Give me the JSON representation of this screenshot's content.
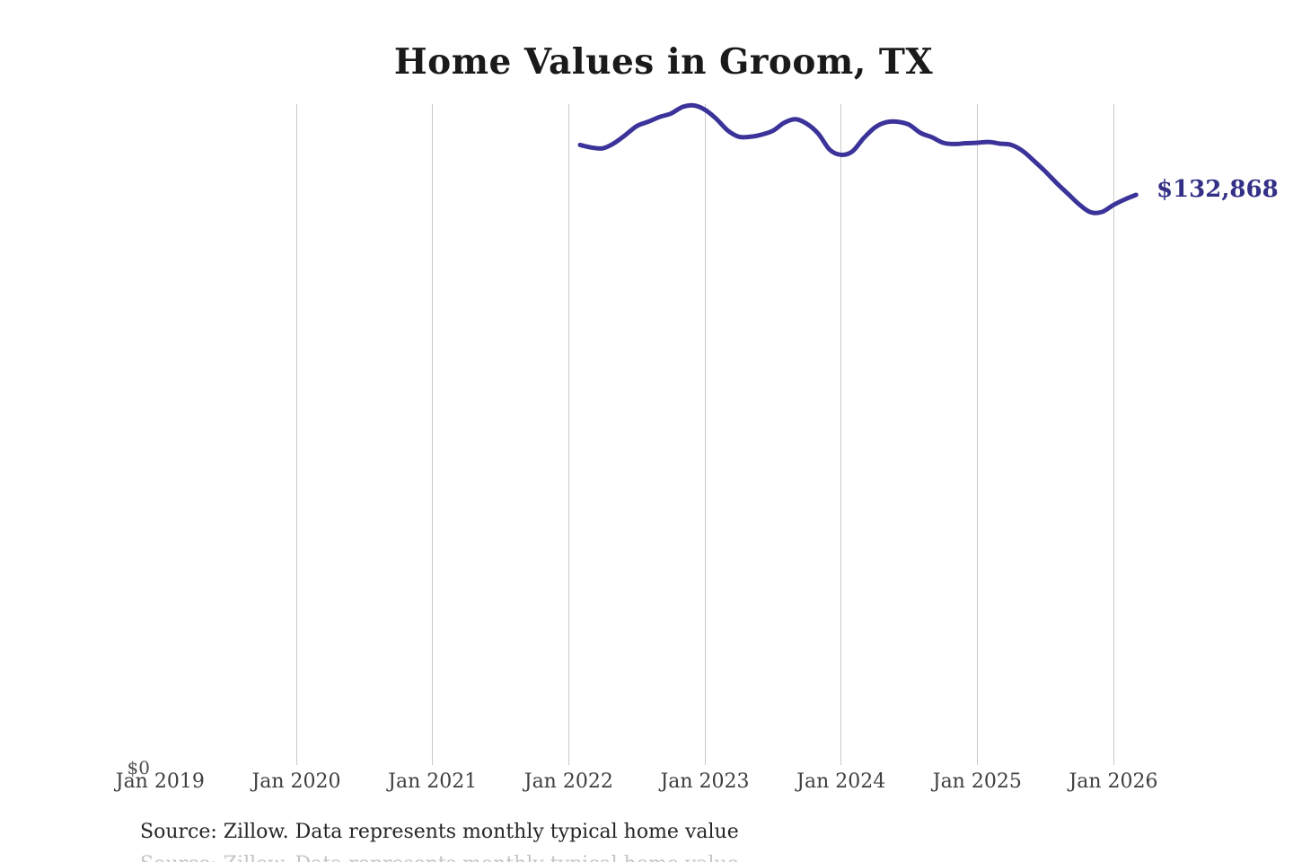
{
  "title": "Home Values in Groom, TX",
  "source_note": "Source: Zillow. Data represents monthly typical home value",
  "end_label": "$132,868",
  "y_zero_label": "$0",
  "colors": {
    "line": "#3b3399",
    "end_label": "#333086",
    "gridline": "#c9c9c9",
    "tick_label": "#3f3f3f",
    "title": "#1a1a1a",
    "source": "#262626"
  },
  "x_axis": {
    "ticks": [
      {
        "label": "Jan 2019",
        "gridline": false
      },
      {
        "label": "Jan 2020",
        "gridline": true
      },
      {
        "label": "Jan 2021",
        "gridline": true
      },
      {
        "label": "Jan 2022",
        "gridline": true
      },
      {
        "label": "Jan 2023",
        "gridline": true
      },
      {
        "label": "Jan 2024",
        "gridline": true
      },
      {
        "label": "Jan 2025",
        "gridline": true
      },
      {
        "label": "Jan 2026",
        "gridline": true
      }
    ]
  },
  "chart_data": {
    "type": "line",
    "title": "Home Values in Groom, TX",
    "series_name": "Monthly typical home value",
    "x": [
      "Feb 2022",
      "Mar 2022",
      "Apr 2022",
      "May 2022",
      "Jun 2022",
      "Jul 2022",
      "Aug 2022",
      "Sep 2022",
      "Oct 2022",
      "Nov 2022",
      "Dec 2022",
      "Jan 2023",
      "Feb 2023",
      "Mar 2023",
      "Apr 2023",
      "May 2023",
      "Jun 2023",
      "Jul 2023",
      "Aug 2023",
      "Sep 2023",
      "Oct 2023",
      "Nov 2023",
      "Dec 2023",
      "Jan 2024",
      "Feb 2024",
      "Mar 2024",
      "Apr 2024",
      "May 2024",
      "Jun 2024",
      "Jul 2024",
      "Aug 2024",
      "Sep 2024",
      "Oct 2024",
      "Nov 2024",
      "Dec 2024",
      "Jan 2025",
      "Feb 2025",
      "Mar 2025",
      "Apr 2025",
      "May 2025",
      "Jun 2025",
      "Jul 2025",
      "Aug 2025",
      "Sep 2025",
      "Oct 2025",
      "Nov 2025",
      "Dec 2025",
      "Jan 2026",
      "Feb 2026",
      "Mar 2026"
    ],
    "values": [
      144500,
      143900,
      143700,
      144900,
      146800,
      148900,
      149900,
      151000,
      151800,
      153300,
      153700,
      152700,
      150600,
      147900,
      146400,
      146400,
      146900,
      147800,
      149700,
      150500,
      149400,
      147100,
      143400,
      142200,
      143000,
      146100,
      148600,
      149800,
      149900,
      149200,
      147300,
      146300,
      145000,
      144700,
      144900,
      145000,
      145200,
      144800,
      144500,
      143100,
      140800,
      138300,
      135600,
      133100,
      130600,
      128800,
      128900,
      130500,
      131800,
      132868
    ],
    "final_value": 132868,
    "end_annotation": "$132,868",
    "xlabel": "",
    "ylabel": "",
    "ylim": [
      0,
      154000
    ],
    "x_tick_labels": [
      "Jan 2019",
      "Jan 2020",
      "Jan 2021",
      "Jan 2022",
      "Jan 2023",
      "Jan 2024",
      "Jan 2025",
      "Jan 2026"
    ],
    "grid": "vertical-only",
    "legend": "none"
  }
}
